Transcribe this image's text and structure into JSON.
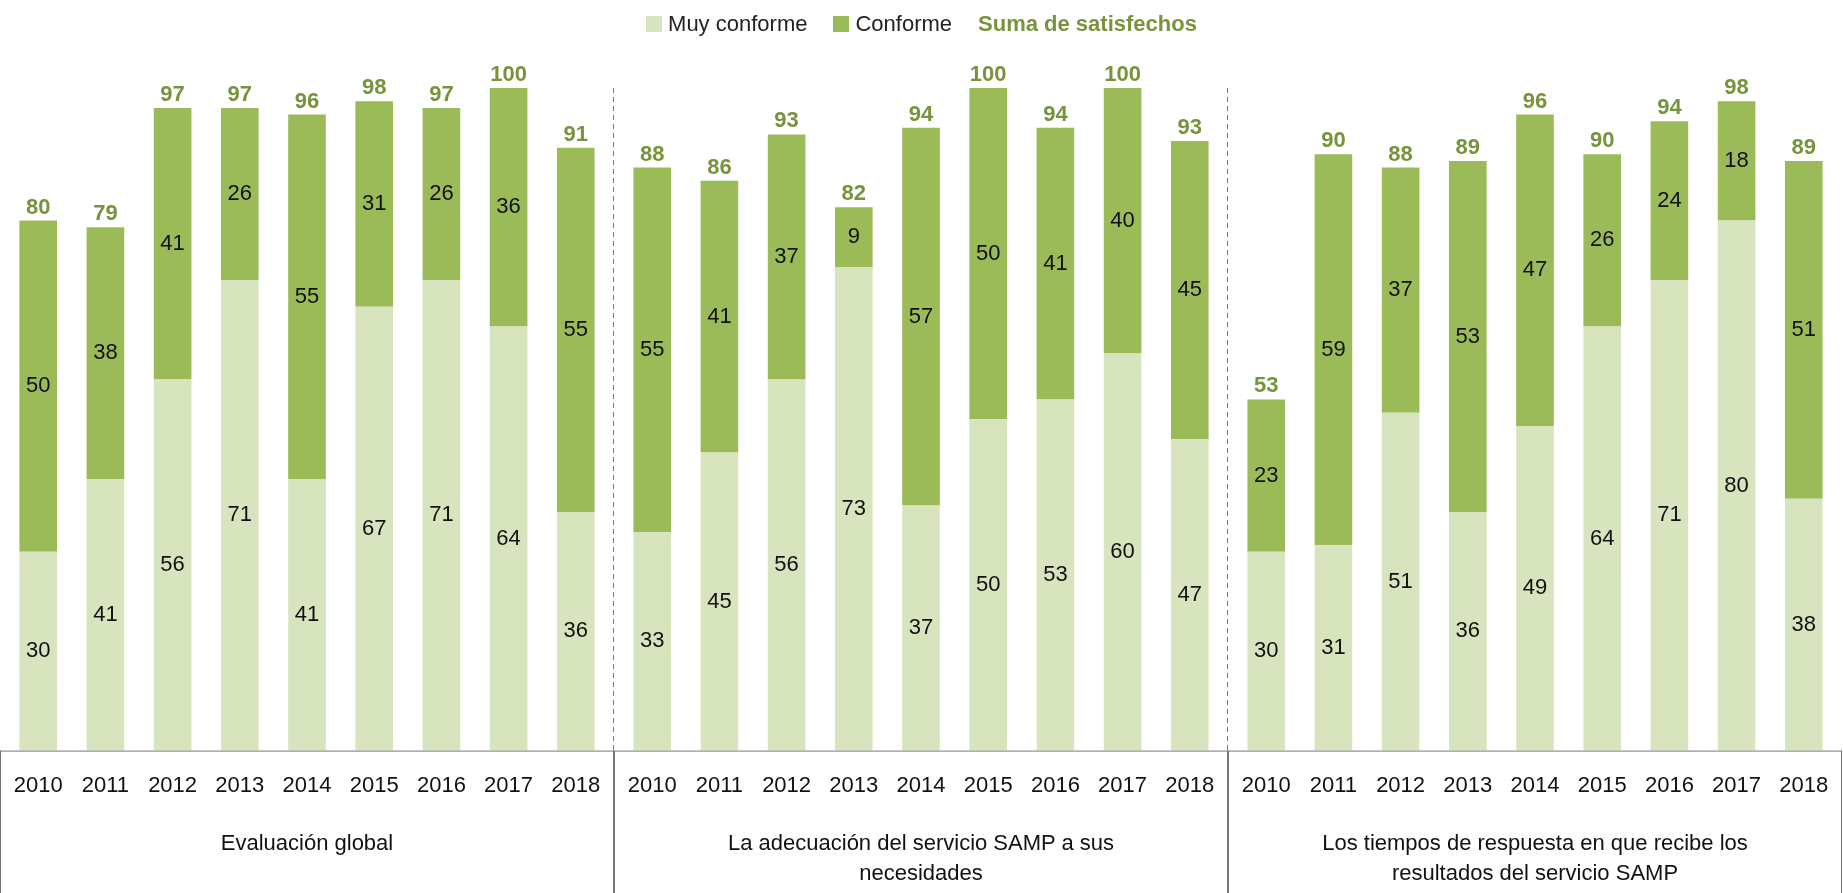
{
  "chart_data": [
    {
      "type": "bar",
      "stacked": true,
      "data_labels": true,
      "legend": "top",
      "xlabel": "Evaluación global",
      "annotations": [
        "Suma de satisfechos"
      ],
      "categories": [
        "2010",
        "2011",
        "2012",
        "2013",
        "2014",
        "2015",
        "2016",
        "2017",
        "2018"
      ],
      "totals": [
        "80",
        "79",
        "97",
        "97",
        "96",
        "98",
        "97",
        "100",
        "91"
      ],
      "series": [
        {
          "name": "Muy conforme",
          "color": "#d7e4bd",
          "values": [
            30,
            41,
            56,
            71,
            41,
            67,
            71,
            64,
            36
          ]
        },
        {
          "name": "Conforme",
          "color": "#9bbb59",
          "values": [
            50,
            38,
            41,
            26,
            55,
            31,
            26,
            36,
            55
          ]
        }
      ]
    },
    {
      "type": "bar",
      "stacked": true,
      "data_labels": true,
      "xlabel": "La adecuación del servicio SAMP a sus necesidades",
      "categories": [
        "2010",
        "2011",
        "2012",
        "2013",
        "2014",
        "2015",
        "2016",
        "2017",
        "2018"
      ],
      "totals": [
        "88",
        "86",
        "93",
        "82",
        "94",
        "100",
        "94",
        "100",
        "93"
      ],
      "series": [
        {
          "color": "#d7e4bd",
          "values": [
            33,
            45,
            56,
            73,
            37,
            50,
            53,
            60,
            47
          ]
        },
        {
          "color": "#9bbb59",
          "values": [
            55,
            41,
            37,
            9,
            57,
            50,
            41,
            40,
            45
          ]
        }
      ]
    },
    {
      "type": "bar",
      "stacked": true,
      "data_labels": true,
      "xlabel": "Los tiempos de respuesta en que recibe los resultados del servicio SAMP",
      "categories": [
        "2010",
        "2011",
        "2012",
        "2013",
        "2014",
        "2015",
        "2016",
        "2017",
        "2018"
      ],
      "totals": [
        "53",
        "90",
        "88",
        "89",
        "96",
        "90",
        "94",
        "98",
        "89"
      ],
      "series": [
        {
          "color": "#d7e4bd",
          "values": [
            30,
            31,
            51,
            36,
            49,
            64,
            71,
            80,
            38
          ]
        },
        {
          "color": "#9bbb59",
          "values": [
            23,
            59,
            37,
            53,
            47,
            26,
            24,
            18,
            51
          ]
        }
      ]
    }
  ]
}
